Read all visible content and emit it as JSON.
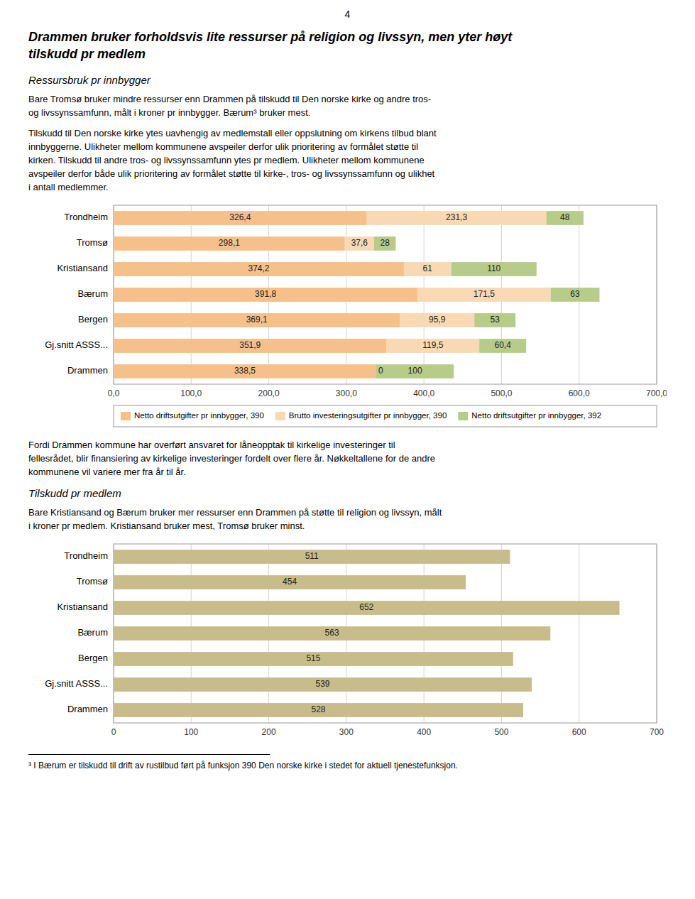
{
  "page": {
    "page_number": "4",
    "title": "Drammen bruker forholdsvis lite ressurser på religion og livssyn, men yter høyt\ntilskudd pr medlem",
    "headings": [
      "Ressursbruk pr innbygger",
      "Tilskudd pr medlem"
    ],
    "paragraphs": [
      "Bare Tromsø bruker mindre ressurser enn Drammen på tilskudd til Den norske kirke og andre tros-\nog livssynssamfunn, målt i kroner pr innbygger. Bærum³ bruker mest.",
      "Tilskudd til Den norske kirke ytes uavhengig av medlemstall eller oppslutning om kirkens tilbud blant\ninnbyggerne. Ulikheter mellom kommunene avspeiler derfor ulik prioritering av formålet støtte til\nkirken. Tilskudd til andre tros- og livssynssamfunn ytes pr medlem. Ulikheter mellom kommunene\navspeiler derfor både ulik prioritering av formålet støtte til kirke-, tros- og livssynssamfunn og ulikhet\ni antall medlemmer.",
      "Fordi Drammen kommune har overført ansvaret for låneopptak til kirkelige investeringer til\nfellesrådet, blir finansiering av kirkelige investeringer fordelt over flere år. Nøkkeltallene for de andre\nkommunene vil variere mer fra år til år.",
      "Bare Kristiansand og Bærum bruker mer ressurser enn Drammen på støtte til religion og livssyn, målt\ni kroner pr medlem. Kristiansand bruker mest, Tromsø bruker minst."
    ],
    "footnote": "³ I Bærum er tilskudd til drift av rustilbud ført på funksjon 390 Den norske kirke i stedet for aktuell tjenestefunksjon."
  },
  "chart_data": [
    {
      "type": "bar",
      "orientation": "horizontal",
      "stacked": true,
      "categories": [
        "Trondheim",
        "Tromsø",
        "Kristiansand",
        "Bærum",
        "Bergen",
        "Gj.snitt ASSS...",
        "Drammen"
      ],
      "series": [
        {
          "name": "Netto driftsutgifter pr innbygger, 390",
          "color": "#F5C08A",
          "values": [
            326.4,
            298.1,
            374.2,
            391.8,
            369.1,
            351.9,
            338.5
          ],
          "value_labels": [
            "326,4",
            "298,1",
            "374,2",
            "391,8",
            "369,1",
            "351,9",
            "338,5"
          ]
        },
        {
          "name": "Brutto investeringsutgifter pr innbygger, 390",
          "color": "#F9D9B4",
          "values": [
            231.3,
            37.6,
            61.0,
            171.5,
            95.9,
            119.5,
            0.0
          ],
          "value_labels": [
            "231,3",
            "37,6",
            "61",
            "171,5",
            "95,9",
            "119,5",
            "0"
          ]
        },
        {
          "name": "Netto driftsutgifter pr innbygger, 392",
          "color": "#B8CC8A",
          "values": [
            48.0,
            28.0,
            110.0,
            63.0,
            53.0,
            60.4,
            100.0
          ],
          "value_labels": [
            "48",
            "28",
            "110",
            "63",
            "53",
            "60,4",
            "100"
          ]
        }
      ],
      "xlim": [
        0,
        700
      ],
      "xticks": [
        {
          "value": 0,
          "label": "0,0"
        },
        {
          "value": 100,
          "label": "100,0"
        },
        {
          "value": 200,
          "label": "200,0"
        },
        {
          "value": 300,
          "label": "300,0"
        },
        {
          "value": 400,
          "label": "400,0"
        },
        {
          "value": 500,
          "label": "500,0"
        },
        {
          "value": 600,
          "label": "600,0"
        },
        {
          "value": 700,
          "label": "700,0"
        }
      ],
      "grid": true,
      "legend": "bottom",
      "data_labels": true
    },
    {
      "type": "bar",
      "orientation": "horizontal",
      "categories": [
        "Trondheim",
        "Tromsø",
        "Kristiansand",
        "Bærum",
        "Bergen",
        "Gj.snitt ASSS...",
        "Drammen"
      ],
      "values": [
        511,
        454,
        652,
        563,
        515,
        539,
        528
      ],
      "color": "#C8BC8A",
      "xlim": [
        0,
        700
      ],
      "xticks": [
        0,
        100,
        200,
        300,
        400,
        500,
        600,
        700
      ],
      "grid": true,
      "data_labels": true
    }
  ]
}
